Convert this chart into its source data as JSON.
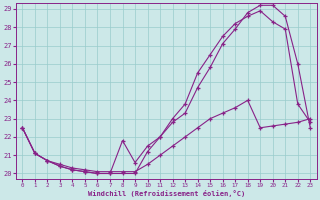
{
  "xlabel": "Windchill (Refroidissement éolien,°C)",
  "bg_color": "#cce8e8",
  "line_color": "#882288",
  "grid_color": "#99cccc",
  "xlim": [
    -0.5,
    23.5
  ],
  "ylim": [
    19.7,
    29.3
  ],
  "xticks": [
    0,
    1,
    2,
    3,
    4,
    5,
    6,
    7,
    8,
    9,
    10,
    11,
    12,
    13,
    14,
    15,
    16,
    17,
    18,
    19,
    20,
    21,
    22,
    23
  ],
  "yticks": [
    20,
    21,
    22,
    23,
    24,
    25,
    26,
    27,
    28,
    29
  ],
  "curve1_x": [
    0,
    1,
    2,
    3,
    4,
    5,
    6,
    7,
    8,
    9,
    10,
    11,
    12,
    13,
    14,
    15,
    16,
    17,
    18,
    19,
    20,
    21,
    22,
    23
  ],
  "curve1_y": [
    22.5,
    21.1,
    20.7,
    20.4,
    20.2,
    20.1,
    20.0,
    20.0,
    21.8,
    20.6,
    21.5,
    22.0,
    22.8,
    23.3,
    24.7,
    25.8,
    27.1,
    27.9,
    28.8,
    29.2,
    29.2,
    28.6,
    26.0,
    22.5
  ],
  "curve2_x": [
    0,
    1,
    2,
    3,
    4,
    5,
    6,
    7,
    8,
    9,
    10,
    11,
    12,
    13,
    14,
    15,
    16,
    17,
    18,
    19,
    20,
    21,
    22,
    23
  ],
  "curve2_y": [
    22.5,
    21.1,
    20.7,
    20.4,
    20.2,
    20.1,
    20.0,
    20.0,
    20.0,
    20.0,
    21.2,
    22.0,
    23.0,
    23.8,
    25.5,
    26.5,
    27.5,
    28.2,
    28.6,
    28.9,
    28.3,
    27.9,
    23.8,
    22.8
  ],
  "curve3_x": [
    0,
    1,
    2,
    3,
    4,
    5,
    6,
    7,
    8,
    9,
    10,
    11,
    12,
    13,
    14,
    15,
    16,
    17,
    18,
    19,
    20,
    21,
    22,
    23
  ],
  "curve3_y": [
    22.5,
    21.1,
    20.7,
    20.5,
    20.3,
    20.2,
    20.1,
    20.1,
    20.1,
    20.1,
    20.5,
    21.0,
    21.5,
    22.0,
    22.5,
    23.0,
    23.3,
    23.6,
    24.0,
    22.5,
    22.6,
    22.7,
    22.8,
    23.0
  ]
}
